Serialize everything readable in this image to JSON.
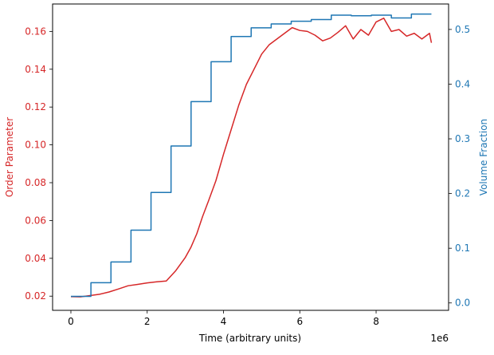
{
  "chart_data": {
    "type": "line",
    "title": "",
    "xlabel": "Time (arbitrary units)",
    "x_offset_label": "1e6",
    "xlim": [
      -480000,
      9900000
    ],
    "x_ticks": [
      0,
      2,
      4,
      6,
      8
    ],
    "y_left": {
      "label": "Order Parameter",
      "color": "#d62728",
      "lim": [
        0.0125,
        0.1745
      ],
      "ticks": [
        "0.02",
        "0.04",
        "0.06",
        "0.08",
        "0.10",
        "0.12",
        "0.14",
        "0.16"
      ]
    },
    "y_right": {
      "label": "Volume Fraction",
      "color": "#1f77b4",
      "lim": [
        -0.0135,
        0.5465
      ],
      "ticks": [
        "0.0",
        "0.1",
        "0.2",
        "0.3",
        "0.4",
        "0.5"
      ]
    },
    "grid": false,
    "series": [
      {
        "axis": "left",
        "color": "#d62728",
        "x": [
          0,
          250000,
          500000,
          750000,
          1000000,
          1250000,
          1500000,
          1750000,
          2000000,
          2250000,
          2500000,
          2750000,
          3000000,
          3150000,
          3300000,
          3450000,
          3600000,
          3800000,
          4000000,
          4200000,
          4400000,
          4600000,
          4800000,
          5000000,
          5200000,
          5400000,
          5600000,
          5800000,
          6000000,
          6200000,
          6400000,
          6600000,
          6800000,
          7000000,
          7200000,
          7400000,
          7600000,
          7800000,
          8000000,
          8200000,
          8400000,
          8600000,
          8800000,
          9000000,
          9200000,
          9400000,
          9450000
        ],
        "y": [
          0.0197,
          0.0196,
          0.0203,
          0.021,
          0.0222,
          0.0238,
          0.0255,
          0.0262,
          0.027,
          0.0276,
          0.028,
          0.0335,
          0.0405,
          0.046,
          0.053,
          0.062,
          0.07,
          0.081,
          0.095,
          0.108,
          0.121,
          0.132,
          0.14,
          0.148,
          0.153,
          0.156,
          0.159,
          0.162,
          0.1605,
          0.16,
          0.158,
          0.155,
          0.1565,
          0.1595,
          0.163,
          0.156,
          0.161,
          0.158,
          0.165,
          0.167,
          0.16,
          0.161,
          0.1575,
          0.159,
          0.156,
          0.159,
          0.154
        ]
      },
      {
        "axis": "right",
        "color": "#1f77b4",
        "step": true,
        "x": [
          0,
          525000,
          1050000,
          1575000,
          2100000,
          2625000,
          3150000,
          3675000,
          4200000,
          4725000,
          5250000,
          5775000,
          6300000,
          6825000,
          7350000,
          7875000,
          8400000,
          8925000,
          9450000
        ],
        "y": [
          0.012,
          0.037,
          0.075,
          0.133,
          0.202,
          0.287,
          0.368,
          0.441,
          0.487,
          0.503,
          0.51,
          0.515,
          0.518,
          0.526,
          0.525,
          0.526,
          0.521,
          0.528,
          0.528
        ]
      }
    ]
  }
}
